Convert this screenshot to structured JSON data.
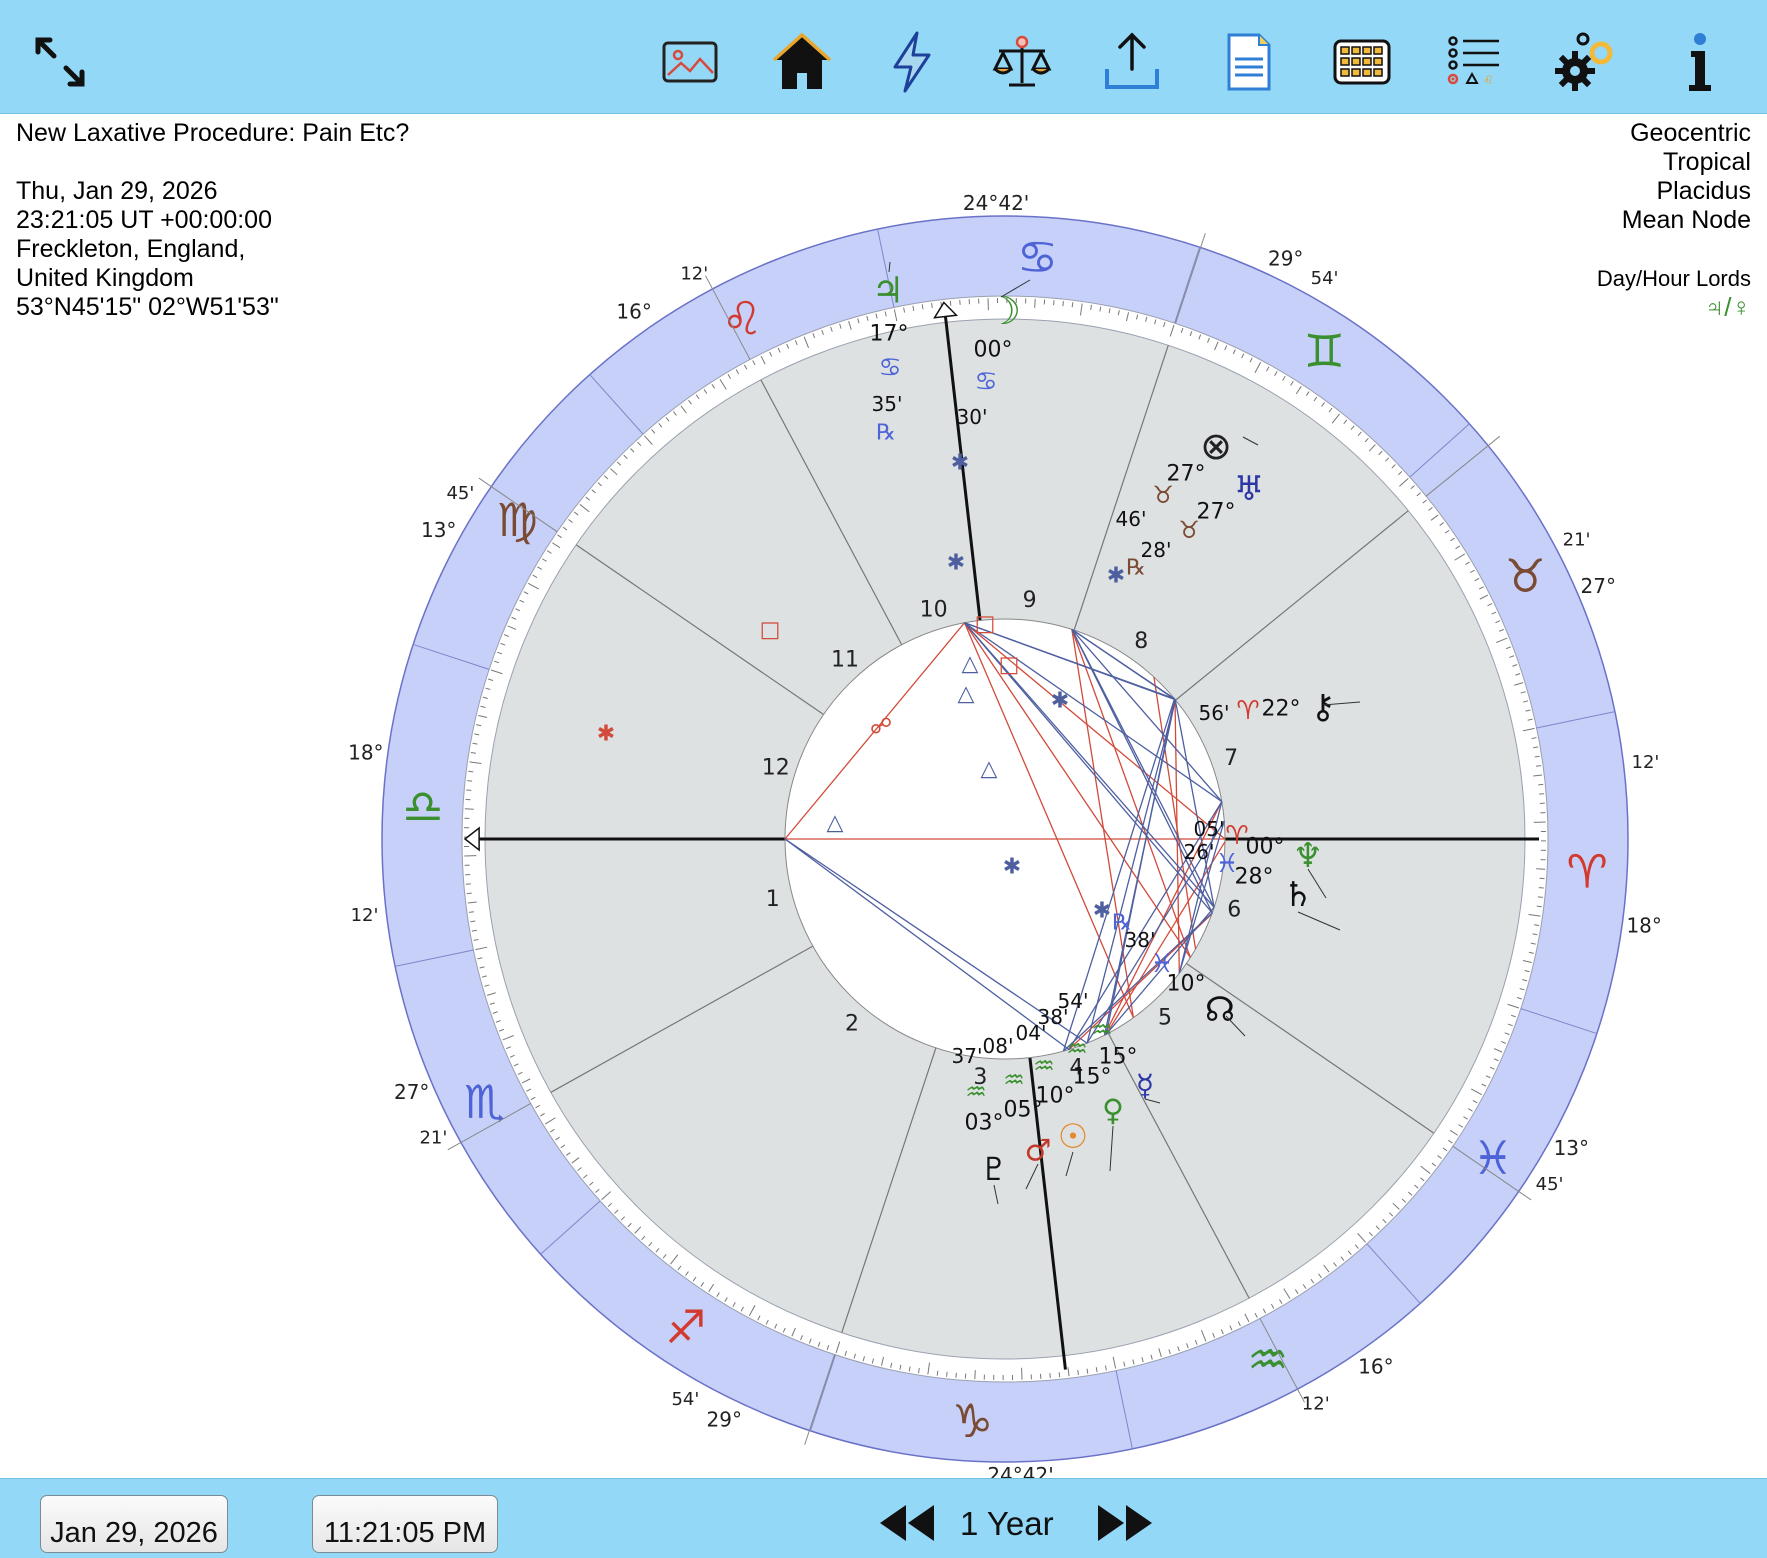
{
  "toolbar": {
    "buttons": [
      {
        "id": "expand",
        "icon": "expand-arrows-icon"
      },
      {
        "id": "image",
        "icon": "image-icon"
      },
      {
        "id": "home",
        "icon": "home-icon"
      },
      {
        "id": "lightning",
        "icon": "lightning-icon"
      },
      {
        "id": "balance",
        "icon": "balance-scale-icon"
      },
      {
        "id": "share",
        "icon": "share-upload-icon"
      },
      {
        "id": "document",
        "icon": "document-icon"
      },
      {
        "id": "keyboard",
        "icon": "grid-keyboard-icon"
      },
      {
        "id": "list",
        "icon": "list-options-icon"
      },
      {
        "id": "settings",
        "icon": "gears-icon"
      },
      {
        "id": "info",
        "icon": "info-icon"
      }
    ]
  },
  "chart_info": {
    "title": "New Laxative Procedure: Pain Etc?",
    "date": "Thu, Jan 29, 2026",
    "time": "23:21:05 UT +00:00:00",
    "place1": "Freckleton, England,",
    "place2": "United Kingdom",
    "coords": "53°N45'15\" 02°W51'53\""
  },
  "settings_info": {
    "line1": "Geocentric",
    "line2": "Tropical",
    "line3": "Placidus",
    "line4": "Mean Node"
  },
  "lords": {
    "label": "Day/Hour Lords",
    "symbols": "♃/♀"
  },
  "wheel": {
    "sign_symbols": [
      "♈",
      "♉",
      "♊",
      "♋",
      "♌",
      "♍",
      "♎",
      "♏",
      "♐",
      "♑",
      "♒",
      "♓"
    ],
    "house_numbers": [
      "1",
      "2",
      "3",
      "4",
      "5",
      "6",
      "7",
      "8",
      "9",
      "10",
      "11",
      "12"
    ],
    "cusps": {
      "asc": {
        "deg": "18°",
        "min": "12'"
      },
      "desc": {
        "deg": "18°",
        "min": "12'"
      },
      "mc": {
        "text": "24°42'"
      },
      "ic": {
        "text": "24°42'"
      },
      "h11": {
        "deg": "16°",
        "min": "12'"
      },
      "h12": {
        "deg": "13°",
        "min": "45'"
      },
      "h2": {
        "deg": "27°",
        "min": "21'"
      },
      "h3": {
        "deg": "29°",
        "min": "54'"
      },
      "h5": {
        "deg": "16°",
        "min": "12'"
      },
      "h6": {
        "deg": "13°",
        "min": "45'"
      },
      "h8": {
        "deg": "27°",
        "min": "21'"
      },
      "h9": {
        "deg": "29°",
        "min": "54'"
      }
    },
    "planets": {
      "jupiter": {
        "glyph": "♃",
        "deg": "17°",
        "sign": "♋",
        "min": "35'",
        "retro": "℞"
      },
      "moon": {
        "glyph": "☽",
        "deg": "00°",
        "sign": "♋",
        "min": "30'"
      },
      "fortune": {
        "glyph": "⊗"
      },
      "uranus": {
        "glyph": "♅",
        "deg": "27°",
        "sign": "♉",
        "min": "28'",
        "retro": "℞"
      },
      "lilith": {
        "glyph": "⚸",
        "deg": "27°",
        "sign": "♉",
        "min": "46'"
      },
      "chiron": {
        "glyph": "⚷",
        "deg": "22°",
        "sign": "♈",
        "min": "56'"
      },
      "neptune": {
        "glyph": "♆",
        "deg": "00°",
        "sign": "♈",
        "min": "05'"
      },
      "saturn": {
        "glyph": "♄",
        "deg": "28°",
        "sign": "♓",
        "min": "26'"
      },
      "node": {
        "glyph": "☊",
        "deg": "10°",
        "sign": "♓",
        "min": "38'",
        "retro": "℞"
      },
      "mercury": {
        "glyph": "☿",
        "deg": "15°",
        "sign": "♒",
        "min": "54'"
      },
      "venus": {
        "glyph": "♀",
        "deg": "15°",
        "sign": "♒",
        "min": "38'"
      },
      "sun": {
        "glyph": "☉",
        "deg": "10°",
        "sign": "♒",
        "min": "04'"
      },
      "mars": {
        "glyph": "♂",
        "deg": "05°",
        "sign": "♒",
        "min": "08'"
      },
      "pluto": {
        "glyph": "♇",
        "deg": "03°",
        "sign": "♒",
        "min": "37'"
      }
    },
    "aspect_glyphs": {
      "square": "□",
      "trine": "△",
      "sextile": "✱",
      "opposition": "☍"
    },
    "colors": {
      "zodiac_ring": "#c6d0f8",
      "house_fill": "#dde1e2",
      "fire": "#d23a2f",
      "earth": "#7a4a33",
      "air": "#3a8f2e",
      "water": "#4d63d6",
      "harmonious_aspect": "#4e5fa0",
      "hard_aspect": "#d24a3a"
    }
  },
  "bottom": {
    "date": "Jan 29, 2026",
    "time": "11:21:05 PM",
    "step": "1 Year"
  }
}
